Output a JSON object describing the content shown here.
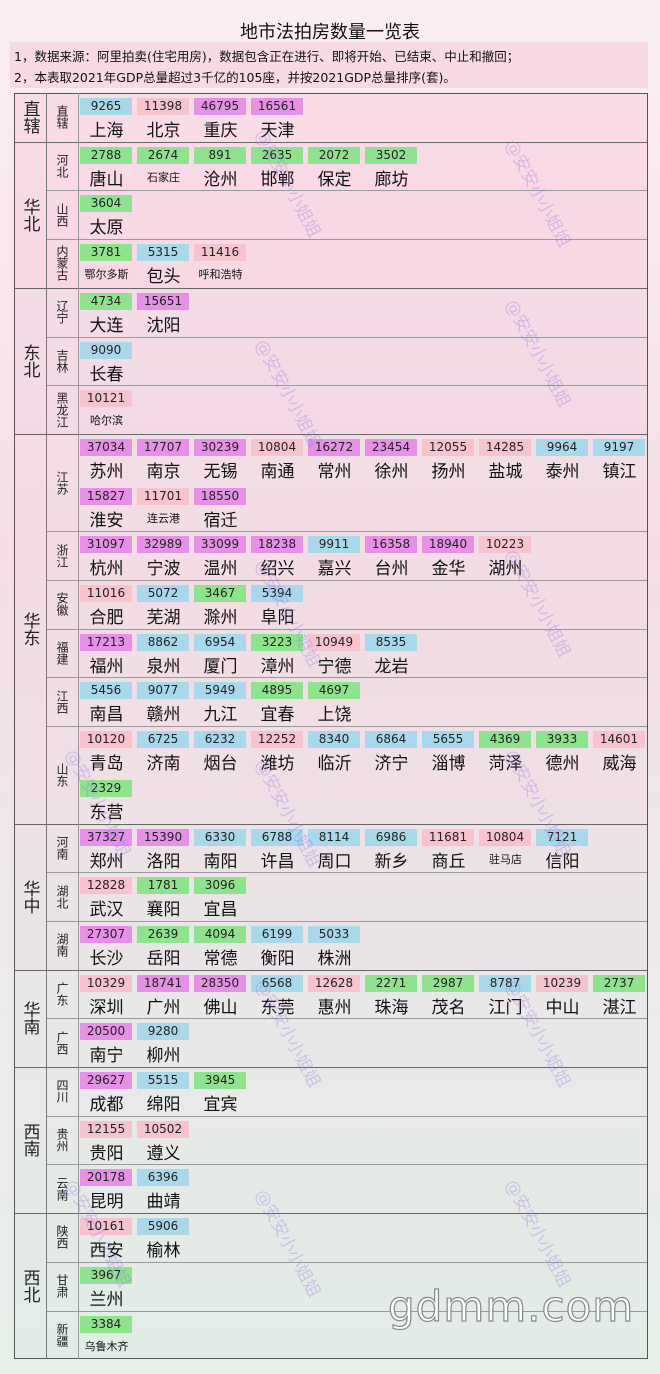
{
  "title": "地市法拍房数量一览表",
  "notes": [
    "1，数据来源：阿里拍卖(住宅用房)，数据包含正在进行、即将开始、已结束、中止和撤回；",
    "2，本表取2021年GDP总量超过3千亿的105座，并按2021GDP总量排序(套)。"
  ],
  "watermark": "@安安小小姐姐",
  "site": "gdmm.com",
  "regions": [
    {
      "name": "直辖",
      "provinces": [
        {
          "name": "直辖",
          "cities": [
            {
              "name": "上海",
              "count": 9265,
              "color": "#a8d8ea"
            },
            {
              "name": "北京",
              "count": 11398,
              "color": "#f6c3cf"
            },
            {
              "name": "重庆",
              "count": 46795,
              "color": "#e690e8"
            },
            {
              "name": "天津",
              "count": 16561,
              "color": "#e690e8"
            }
          ]
        }
      ]
    },
    {
      "name": "华北",
      "provinces": [
        {
          "name": "河北",
          "cities": [
            {
              "name": "唐山",
              "count": 2788,
              "color": "#90e38e"
            },
            {
              "name": "石家庄",
              "count": 2674,
              "color": "#90e38e"
            },
            {
              "name": "沧州",
              "count": 891,
              "color": "#90e38e"
            },
            {
              "name": "邯郸",
              "count": 2635,
              "color": "#90e38e"
            },
            {
              "name": "保定",
              "count": 2072,
              "color": "#90e38e"
            },
            {
              "name": "廊坊",
              "count": 3502,
              "color": "#90e38e"
            }
          ]
        },
        {
          "name": "山西",
          "cities": [
            {
              "name": "太原",
              "count": 3604,
              "color": "#90e38e"
            }
          ]
        },
        {
          "name": "内蒙古",
          "cities": [
            {
              "name": "鄂尔多斯",
              "count": 3781,
              "color": "#90e38e"
            },
            {
              "name": "包头",
              "count": 5315,
              "color": "#a8d8ea"
            },
            {
              "name": "呼和浩特",
              "count": 11416,
              "color": "#f6c3cf"
            }
          ]
        }
      ]
    },
    {
      "name": "东北",
      "provinces": [
        {
          "name": "辽宁",
          "cities": [
            {
              "name": "大连",
              "count": 4734,
              "color": "#90e38e"
            },
            {
              "name": "沈阳",
              "count": 15651,
              "color": "#e690e8"
            }
          ]
        },
        {
          "name": "吉林",
          "cities": [
            {
              "name": "长春",
              "count": 9090,
              "color": "#a8d8ea"
            }
          ]
        },
        {
          "name": "黑龙江",
          "cities": [
            {
              "name": "哈尔滨",
              "count": 10121,
              "color": "#f6c3cf"
            }
          ]
        }
      ]
    },
    {
      "name": "华东",
      "provinces": [
        {
          "name": "江苏",
          "cities": [
            {
              "name": "苏州",
              "count": 37034,
              "color": "#e690e8"
            },
            {
              "name": "南京",
              "count": 17707,
              "color": "#e690e8"
            },
            {
              "name": "无锡",
              "count": 30239,
              "color": "#e690e8"
            },
            {
              "name": "南通",
              "count": 10804,
              "color": "#f6c3cf"
            },
            {
              "name": "常州",
              "count": 16272,
              "color": "#e690e8"
            },
            {
              "name": "徐州",
              "count": 23454,
              "color": "#e690e8"
            },
            {
              "name": "扬州",
              "count": 12055,
              "color": "#f6c3cf"
            },
            {
              "name": "盐城",
              "count": 14285,
              "color": "#f6c3cf"
            },
            {
              "name": "泰州",
              "count": 9964,
              "color": "#a8d8ea"
            },
            {
              "name": "镇江",
              "count": 9197,
              "color": "#a8d8ea"
            },
            {
              "name": "淮安",
              "count": 15827,
              "color": "#e690e8"
            },
            {
              "name": "连云港",
              "count": 11701,
              "color": "#f6c3cf"
            },
            {
              "name": "宿迁",
              "count": 18550,
              "color": "#e690e8"
            }
          ]
        },
        {
          "name": "浙江",
          "cities": [
            {
              "name": "杭州",
              "count": 31097,
              "color": "#e690e8"
            },
            {
              "name": "宁波",
              "count": 32989,
              "color": "#e690e8"
            },
            {
              "name": "温州",
              "count": 33099,
              "color": "#e690e8"
            },
            {
              "name": "绍兴",
              "count": 18238,
              "color": "#e690e8"
            },
            {
              "name": "嘉兴",
              "count": 9911,
              "color": "#a8d8ea"
            },
            {
              "name": "台州",
              "count": 16358,
              "color": "#e690e8"
            },
            {
              "name": "金华",
              "count": 18940,
              "color": "#e690e8"
            },
            {
              "name": "湖州",
              "count": 10223,
              "color": "#f6c3cf"
            }
          ]
        },
        {
          "name": "安徽",
          "cities": [
            {
              "name": "合肥",
              "count": 11016,
              "color": "#f6c3cf"
            },
            {
              "name": "芜湖",
              "count": 5072,
              "color": "#a8d8ea"
            },
            {
              "name": "滁州",
              "count": 3467,
              "color": "#90e38e"
            },
            {
              "name": "阜阳",
              "count": 5394,
              "color": "#a8d8ea"
            }
          ]
        },
        {
          "name": "福建",
          "cities": [
            {
              "name": "福州",
              "count": 17213,
              "color": "#e690e8"
            },
            {
              "name": "泉州",
              "count": 8862,
              "color": "#a8d8ea"
            },
            {
              "name": "厦门",
              "count": 6954,
              "color": "#a8d8ea"
            },
            {
              "name": "漳州",
              "count": 3223,
              "color": "#90e38e"
            },
            {
              "name": "宁德",
              "count": 10949,
              "color": "#f6c3cf"
            },
            {
              "name": "龙岩",
              "count": 8535,
              "color": "#a8d8ea"
            }
          ]
        },
        {
          "name": "江西",
          "cities": [
            {
              "name": "南昌",
              "count": 5456,
              "color": "#a8d8ea"
            },
            {
              "name": "赣州",
              "count": 9077,
              "color": "#a8d8ea"
            },
            {
              "name": "九江",
              "count": 5949,
              "color": "#a8d8ea"
            },
            {
              "name": "宜春",
              "count": 4895,
              "color": "#90e38e"
            },
            {
              "name": "上饶",
              "count": 4697,
              "color": "#90e38e"
            }
          ]
        },
        {
          "name": "山东",
          "cities": [
            {
              "name": "青岛",
              "count": 10120,
              "color": "#f6c3cf"
            },
            {
              "name": "济南",
              "count": 6725,
              "color": "#a8d8ea"
            },
            {
              "name": "烟台",
              "count": 6232,
              "color": "#a8d8ea"
            },
            {
              "name": "潍坊",
              "count": 12252,
              "color": "#f6c3cf"
            },
            {
              "name": "临沂",
              "count": 8340,
              "color": "#a8d8ea"
            },
            {
              "name": "济宁",
              "count": 6864,
              "color": "#a8d8ea"
            },
            {
              "name": "淄博",
              "count": 5655,
              "color": "#a8d8ea"
            },
            {
              "name": "菏泽",
              "count": 4369,
              "color": "#90e38e"
            },
            {
              "name": "德州",
              "count": 3933,
              "color": "#90e38e"
            },
            {
              "name": "威海",
              "count": 14601,
              "color": "#f6c3cf"
            },
            {
              "name": "东营",
              "count": 2329,
              "color": "#90e38e"
            }
          ]
        }
      ]
    },
    {
      "name": "华中",
      "provinces": [
        {
          "name": "河南",
          "cities": [
            {
              "name": "郑州",
              "count": 37327,
              "color": "#e690e8"
            },
            {
              "name": "洛阳",
              "count": 15390,
              "color": "#e690e8"
            },
            {
              "name": "南阳",
              "count": 6330,
              "color": "#a8d8ea"
            },
            {
              "name": "许昌",
              "count": 6788,
              "color": "#a8d8ea"
            },
            {
              "name": "周口",
              "count": 8114,
              "color": "#a8d8ea"
            },
            {
              "name": "新乡",
              "count": 6986,
              "color": "#a8d8ea"
            },
            {
              "name": "商丘",
              "count": 11681,
              "color": "#f6c3cf"
            },
            {
              "name": "驻马店",
              "count": 10804,
              "color": "#f6c3cf"
            },
            {
              "name": "信阳",
              "count": 7121,
              "color": "#a8d8ea"
            }
          ]
        },
        {
          "name": "湖北",
          "cities": [
            {
              "name": "武汉",
              "count": 12828,
              "color": "#f6c3cf"
            },
            {
              "name": "襄阳",
              "count": 1781,
              "color": "#90e38e"
            },
            {
              "name": "宜昌",
              "count": 3096,
              "color": "#90e38e"
            }
          ]
        },
        {
          "name": "湖南",
          "cities": [
            {
              "name": "长沙",
              "count": 27307,
              "color": "#e690e8"
            },
            {
              "name": "岳阳",
              "count": 2639,
              "color": "#90e38e"
            },
            {
              "name": "常德",
              "count": 4094,
              "color": "#90e38e"
            },
            {
              "name": "衡阳",
              "count": 6199,
              "color": "#a8d8ea"
            },
            {
              "name": "株洲",
              "count": 5033,
              "color": "#a8d8ea"
            }
          ]
        }
      ]
    },
    {
      "name": "华南",
      "provinces": [
        {
          "name": "广东",
          "cities": [
            {
              "name": "深圳",
              "count": 10329,
              "color": "#f6c3cf"
            },
            {
              "name": "广州",
              "count": 18741,
              "color": "#e690e8"
            },
            {
              "name": "佛山",
              "count": 28350,
              "color": "#e690e8"
            },
            {
              "name": "东莞",
              "count": 6568,
              "color": "#a8d8ea"
            },
            {
              "name": "惠州",
              "count": 12628,
              "color": "#f6c3cf"
            },
            {
              "name": "珠海",
              "count": 2271,
              "color": "#90e38e"
            },
            {
              "name": "茂名",
              "count": 2987,
              "color": "#90e38e"
            },
            {
              "name": "江门",
              "count": 8787,
              "color": "#a8d8ea"
            },
            {
              "name": "中山",
              "count": 10239,
              "color": "#f6c3cf"
            },
            {
              "name": "湛江",
              "count": 2737,
              "color": "#90e38e"
            }
          ]
        },
        {
          "name": "广西",
          "cities": [
            {
              "name": "南宁",
              "count": 20500,
              "color": "#e690e8"
            },
            {
              "name": "柳州",
              "count": 9280,
              "color": "#a8d8ea"
            }
          ]
        }
      ]
    },
    {
      "name": "西南",
      "provinces": [
        {
          "name": "四川",
          "cities": [
            {
              "name": "成都",
              "count": 29627,
              "color": "#e690e8"
            },
            {
              "name": "绵阳",
              "count": 5515,
              "color": "#a8d8ea"
            },
            {
              "name": "宜宾",
              "count": 3945,
              "color": "#90e38e"
            }
          ]
        },
        {
          "name": "贵州",
          "cities": [
            {
              "name": "贵阳",
              "count": 12155,
              "color": "#f6c3cf"
            },
            {
              "name": "遵义",
              "count": 10502,
              "color": "#f6c3cf"
            }
          ]
        },
        {
          "name": "云南",
          "cities": [
            {
              "name": "昆明",
              "count": 20178,
              "color": "#e690e8"
            },
            {
              "name": "曲靖",
              "count": 6396,
              "color": "#a8d8ea"
            }
          ]
        }
      ]
    },
    {
      "name": "西北",
      "provinces": [
        {
          "name": "陕西",
          "cities": [
            {
              "name": "西安",
              "count": 10161,
              "color": "#f6c3cf"
            },
            {
              "name": "榆林",
              "count": 5906,
              "color": "#a8d8ea"
            }
          ]
        },
        {
          "name": "甘肃",
          "cities": [
            {
              "name": "兰州",
              "count": 3967,
              "color": "#90e38e"
            }
          ]
        },
        {
          "name": "新疆",
          "cities": [
            {
              "name": "乌鲁木齐",
              "count": 3384,
              "color": "#90e38e"
            }
          ]
        }
      ]
    }
  ]
}
